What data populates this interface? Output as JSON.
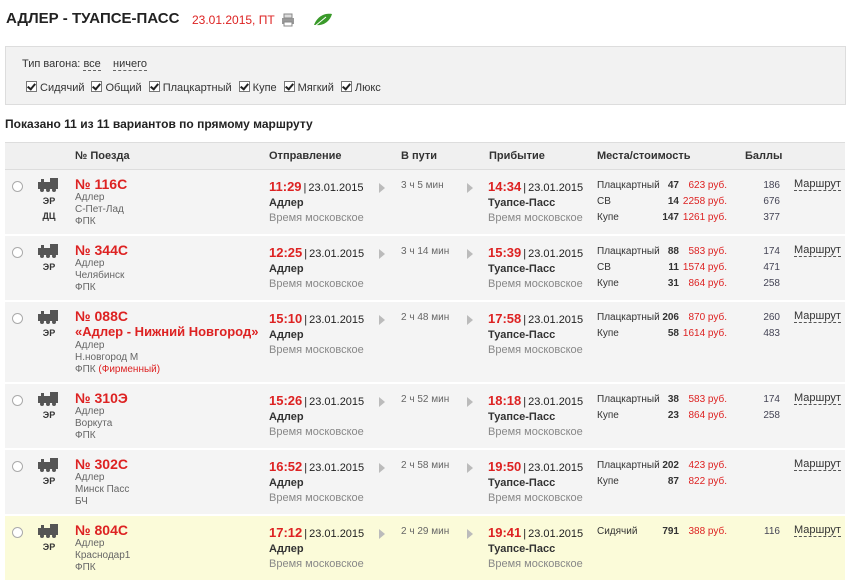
{
  "header": {
    "title": "АДЛЕР - ТУАПСЕ-ПАСС",
    "date": "23.01.2015, ПТ"
  },
  "filter": {
    "label": "Тип вагона:",
    "all": "все",
    "none": "ничего",
    "types": [
      "Сидячий",
      "Общий",
      "Плацкартный",
      "Купе",
      "Мягкий",
      "Люкс"
    ]
  },
  "summary": "Показано 11 из 11 вариантов по прямому маршруту",
  "columns": [
    "№ Поезда",
    "Отправление",
    "В пути",
    "Прибытие",
    "Места/стоимость",
    "Баллы"
  ],
  "trains": [
    {
      "badges": [
        "ЭР",
        "ДЦ"
      ],
      "number": "№ 116С",
      "from": "Адлер",
      "to": "С-Пет-Лад",
      "carrier": "ФПК",
      "departure": {
        "time": "11:29",
        "date": "23.01.2015",
        "station": "Адлер",
        "tz": "Время московское"
      },
      "duration": "3 ч 5 мин",
      "arrival": {
        "time": "14:34",
        "date": "23.01.2015",
        "station": "Туапсе-Пасс",
        "tz": "Время московское"
      },
      "seats": [
        {
          "type": "Плацкартный",
          "count": 47,
          "price": "623 руб.",
          "points": 186
        },
        {
          "type": "СВ",
          "count": 14,
          "price": "2258 руб.",
          "points": 676
        },
        {
          "type": "Купе",
          "count": 147,
          "price": "1261 руб.",
          "points": 377
        }
      ],
      "link": "Маршрут"
    },
    {
      "badges": [
        "ЭР"
      ],
      "number": "№ 344С",
      "from": "Адлер",
      "to": "Челябинск",
      "carrier": "ФПК",
      "departure": {
        "time": "12:25",
        "date": "23.01.2015",
        "station": "Адлер",
        "tz": "Время московское"
      },
      "duration": "3 ч 14 мин",
      "arrival": {
        "time": "15:39",
        "date": "23.01.2015",
        "station": "Туапсе-Пасс",
        "tz": "Время московское"
      },
      "seats": [
        {
          "type": "Плацкартный",
          "count": 88,
          "price": "583 руб.",
          "points": 174
        },
        {
          "type": "СВ",
          "count": 11,
          "price": "1574 руб.",
          "points": 471
        },
        {
          "type": "Купе",
          "count": 31,
          "price": "864 руб.",
          "points": 258
        }
      ],
      "link": "Маршрут"
    },
    {
      "badges": [
        "ЭР"
      ],
      "number": "№ 088С",
      "name": "«Адлер - Нижний Новгород»",
      "from": "Адлер",
      "to": "Н.новгород М",
      "carrier": "ФПК",
      "brand": "(Фирменный)",
      "departure": {
        "time": "15:10",
        "date": "23.01.2015",
        "station": "Адлер",
        "tz": "Время московское"
      },
      "duration": "2 ч 48 мин",
      "arrival": {
        "time": "17:58",
        "date": "23.01.2015",
        "station": "Туапсе-Пасс",
        "tz": "Время московское"
      },
      "seats": [
        {
          "type": "Плацкартный",
          "count": 206,
          "price": "870 руб.",
          "points": 260
        },
        {
          "type": "Купе",
          "count": 58,
          "price": "1614 руб.",
          "points": 483
        }
      ],
      "link": "Маршрут"
    },
    {
      "badges": [
        "ЭР"
      ],
      "number": "№ 310Э",
      "from": "Адлер",
      "to": "Воркута",
      "carrier": "ФПК",
      "departure": {
        "time": "15:26",
        "date": "23.01.2015",
        "station": "Адлер",
        "tz": "Время московское"
      },
      "duration": "2 ч 52 мин",
      "arrival": {
        "time": "18:18",
        "date": "23.01.2015",
        "station": "Туапсе-Пасс",
        "tz": "Время московское"
      },
      "seats": [
        {
          "type": "Плацкартный",
          "count": 38,
          "price": "583 руб.",
          "points": 174
        },
        {
          "type": "Купе",
          "count": 23,
          "price": "864 руб.",
          "points": 258
        }
      ],
      "link": "Маршрут"
    },
    {
      "badges": [
        "ЭР"
      ],
      "number": "№ 302С",
      "from": "Адлер",
      "to": "Минск Пасс",
      "carrier": "БЧ",
      "departure": {
        "time": "16:52",
        "date": "23.01.2015",
        "station": "Адлер",
        "tz": "Время московское"
      },
      "duration": "2 ч 58 мин",
      "arrival": {
        "time": "19:50",
        "date": "23.01.2015",
        "station": "Туапсе-Пасс",
        "tz": "Время московское"
      },
      "seats": [
        {
          "type": "Плацкартный",
          "count": 202,
          "price": "423 руб."
        },
        {
          "type": "Купе",
          "count": 87,
          "price": "822 руб."
        }
      ],
      "link": "Маршрут"
    },
    {
      "badges": [
        "ЭР"
      ],
      "number": "№ 804С",
      "from": "Адлер",
      "to": "Краснодар1",
      "carrier": "ФПК",
      "departure": {
        "time": "17:12",
        "date": "23.01.2015",
        "station": "Адлер",
        "tz": "Время московское"
      },
      "duration": "2 ч 29 мин",
      "arrival": {
        "time": "19:41",
        "date": "23.01.2015",
        "station": "Туапсе-Пасс",
        "tz": "Время московское"
      },
      "seats": [
        {
          "type": "Сидячий",
          "count": 791,
          "price": "388 руб.",
          "points": 116
        }
      ],
      "link": "Маршрут",
      "highlight": true
    }
  ]
}
